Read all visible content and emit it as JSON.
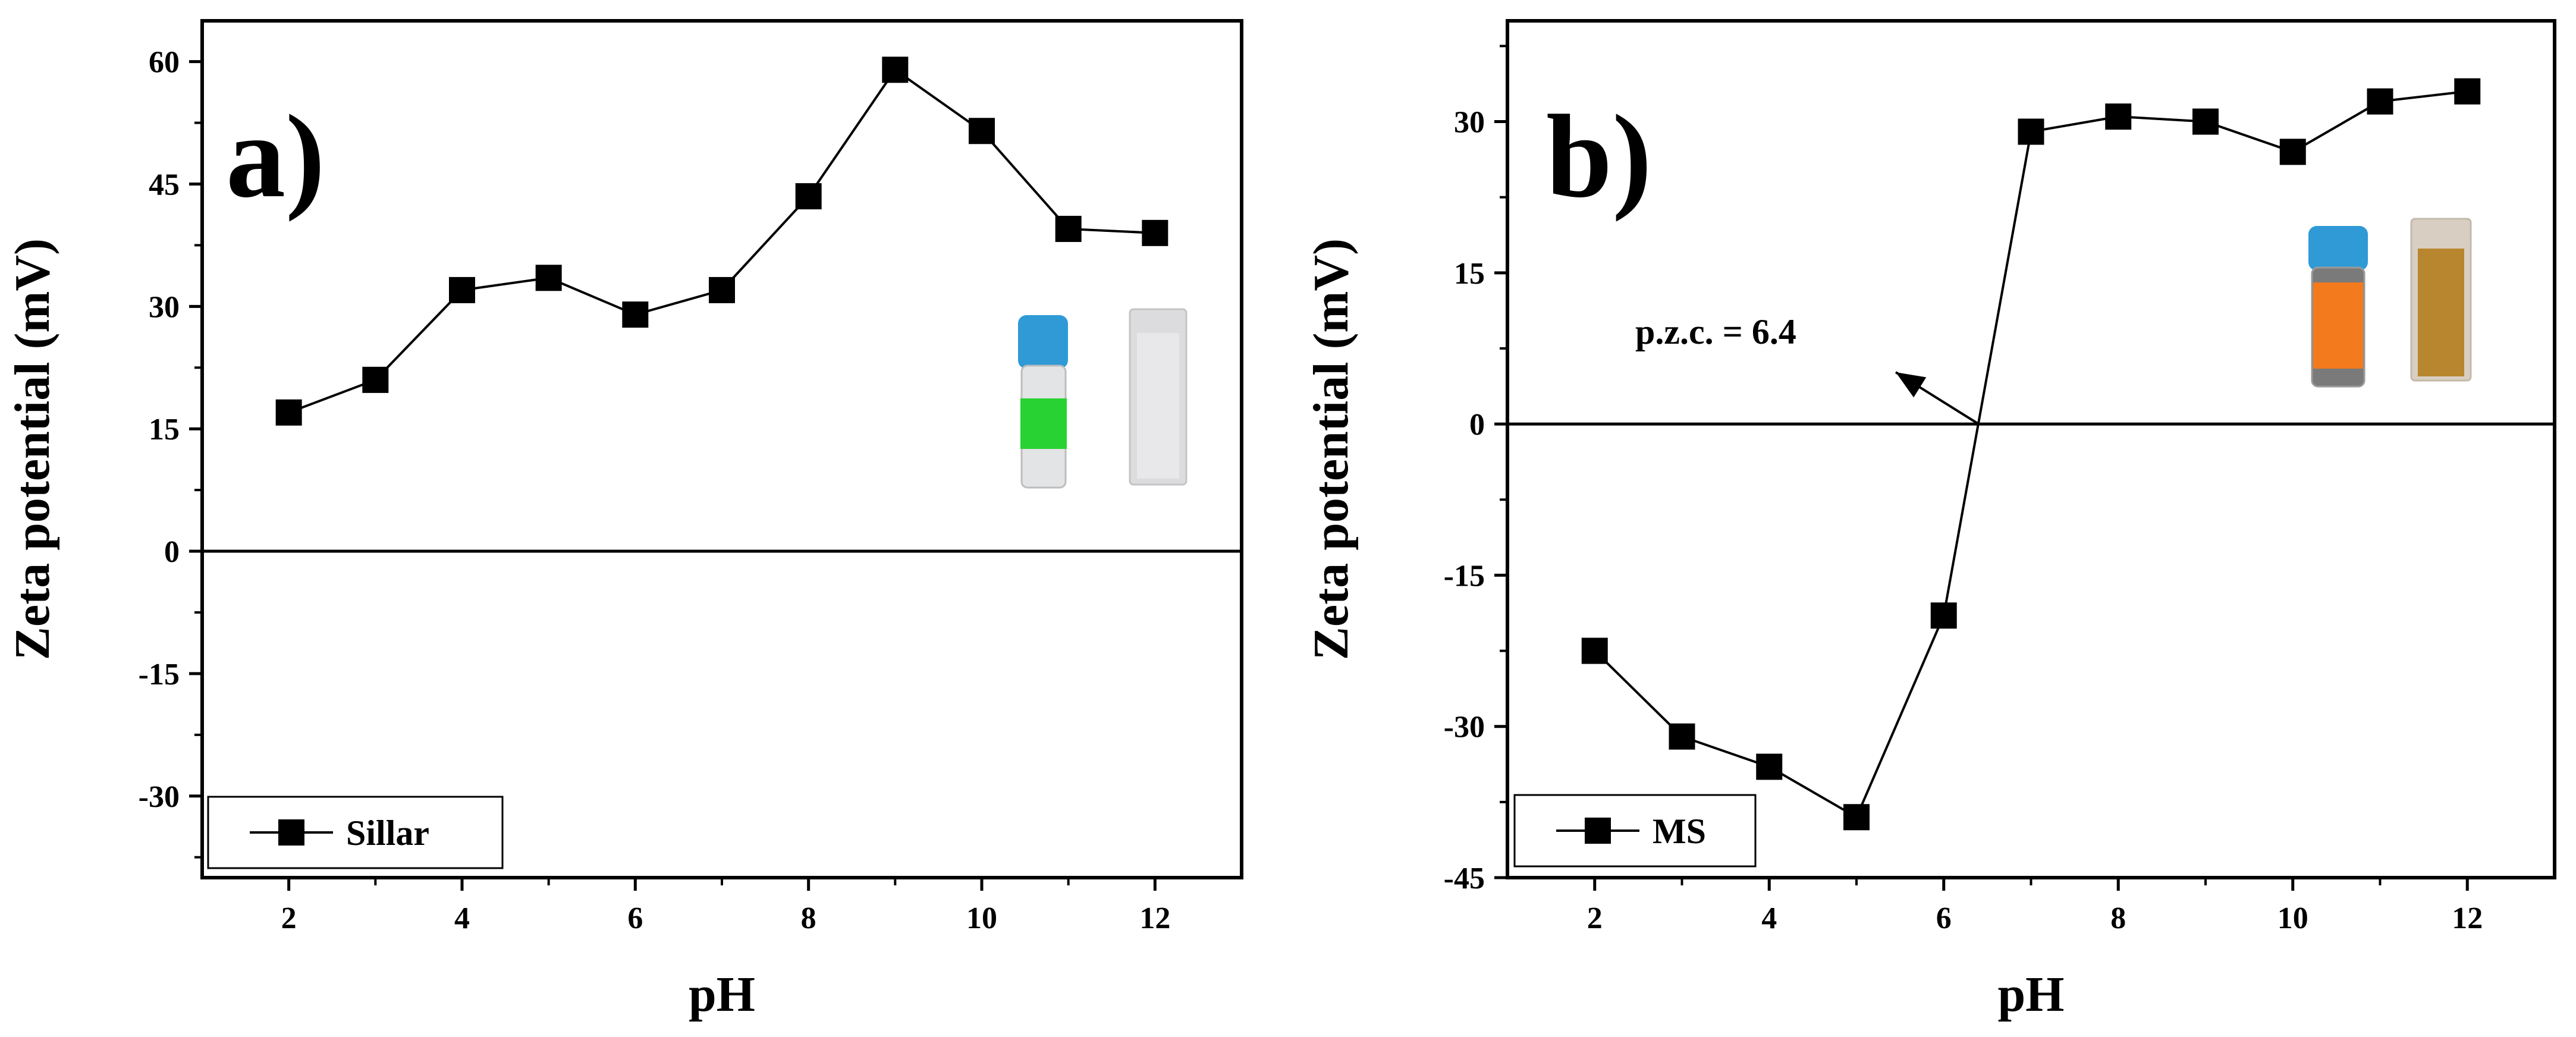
{
  "chart_data": [
    {
      "type": "line",
      "panel_label": "a)",
      "xlabel": "pH",
      "ylabel": "Zeta potential (mV)",
      "xlim": [
        1,
        13
      ],
      "ylim": [
        -40,
        65
      ],
      "xticks": [
        2,
        4,
        6,
        8,
        10,
        12
      ],
      "yticks": [
        60,
        45,
        30,
        15,
        0,
        -15,
        -30
      ],
      "xtick_labels": [
        "2",
        "4",
        "6",
        "8",
        "10",
        "12"
      ],
      "ytick_labels": [
        "60",
        "45",
        "30",
        "15",
        "0",
        "-15",
        "-30"
      ],
      "legend": "bottom-left",
      "series": [
        {
          "name": "Sillar",
          "marker": "square",
          "color": "#000000",
          "x": [
            2,
            3,
            4,
            5,
            6,
            7,
            8,
            9,
            10,
            11,
            12
          ],
          "y": [
            17,
            21,
            32,
            33.5,
            29,
            32,
            43.5,
            59,
            51.5,
            39.5,
            39
          ]
        }
      ],
      "inset_photo": "vial and cuvette of Sillar suspension (clear)"
    },
    {
      "type": "line",
      "panel_label": "b)",
      "xlabel": "pH",
      "ylabel": "Zeta potential (mV)",
      "xlim": [
        1,
        13
      ],
      "ylim": [
        -45,
        40
      ],
      "xticks": [
        2,
        4,
        6,
        8,
        10,
        12
      ],
      "yticks": [
        30,
        15,
        0,
        -15,
        -30,
        -45
      ],
      "xtick_labels": [
        "2",
        "4",
        "6",
        "8",
        "10",
        "12"
      ],
      "ytick_labels": [
        "30",
        "15",
        "0",
        "-15",
        "-30",
        "-45"
      ],
      "legend": "bottom-left",
      "annotation": {
        "text": "p.z.c. = 6.4",
        "x": 6.4,
        "y": 0
      },
      "series": [
        {
          "name": "MS",
          "marker": "square",
          "color": "#000000",
          "x": [
            2,
            3,
            4,
            5,
            6,
            7,
            8,
            9,
            10,
            11,
            12
          ],
          "y": [
            -22.5,
            -31,
            -34,
            -39,
            -19,
            29,
            30.5,
            30,
            27,
            32,
            33
          ]
        }
      ],
      "inset_photo": "vial and cuvette of MS suspension (orange)"
    }
  ]
}
